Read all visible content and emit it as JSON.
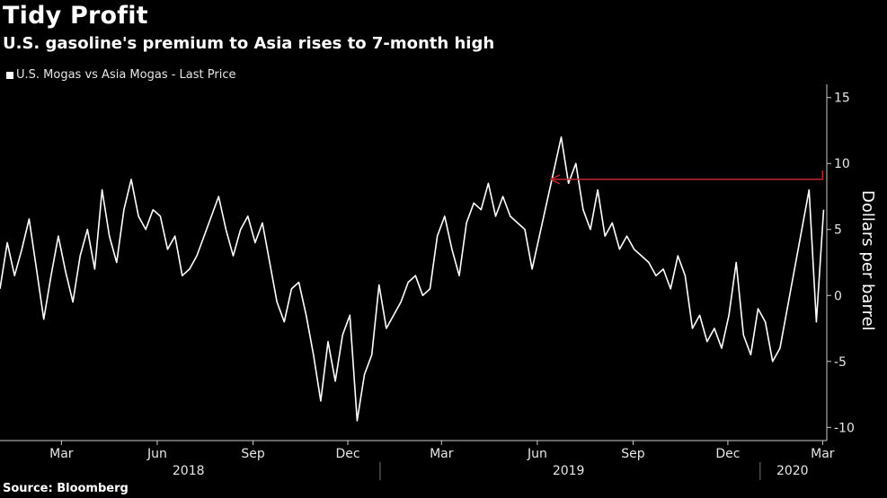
{
  "title": "Tidy Profit",
  "subtitle": "U.S. gasoline's premium to Asia rises to 7-month high",
  "source": "Source: Bloomberg",
  "colors": {
    "background": "#000000",
    "series": "#ffffff",
    "annotation": "#c0272d",
    "axis": "#cccccc"
  },
  "chart_data": {
    "type": "line",
    "title": "Tidy Profit",
    "subtitle": "U.S. gasoline's premium to Asia rises to 7-month high",
    "ylabel": "Dollars per barrel",
    "xlabel": "",
    "ylim": [
      -11,
      16
    ],
    "yticks": [
      15,
      10,
      5,
      0,
      -5,
      -10
    ],
    "ytick_labels": [
      "15",
      "10",
      "5",
      "0",
      "-5",
      "-10"
    ],
    "grid": false,
    "legend": {
      "placement": "top-left",
      "entries": [
        "U.S. Mogas vs Asia Mogas - Last Price"
      ]
    },
    "x_range": [
      "2018-01-01",
      "2020-03-05"
    ],
    "x_tick_labels": [
      {
        "date": "2018-03-01",
        "label": "Mar"
      },
      {
        "date": "2018-06-01",
        "label": "Jun"
      },
      {
        "date": "2018-09-01",
        "label": "Sep"
      },
      {
        "date": "2018-12-01",
        "label": "Dec"
      },
      {
        "date": "2019-03-01",
        "label": "Mar"
      },
      {
        "date": "2019-06-01",
        "label": "Jun"
      },
      {
        "date": "2019-09-01",
        "label": "Sep"
      },
      {
        "date": "2019-12-01",
        "label": "Dec"
      },
      {
        "date": "2020-03-01",
        "label": "Mar"
      }
    ],
    "year_labels": [
      {
        "date": "2018-07-01",
        "label": "2018"
      },
      {
        "date": "2019-07-01",
        "label": "2019"
      },
      {
        "date": "2020-02-01",
        "label": "2020"
      }
    ],
    "year_separators": [
      "2019-01-01",
      "2020-01-01"
    ],
    "annotation": {
      "type": "horizontal-arrow",
      "from_date": "2020-03-01",
      "to_date": "2019-06-14",
      "y": 8.8
    },
    "series": [
      {
        "name": "U.S. Mogas vs Asia Mogas - Last Price",
        "x": [
          "2018-01-01",
          "2018-01-08",
          "2018-01-15",
          "2018-01-22",
          "2018-01-29",
          "2018-02-05",
          "2018-02-12",
          "2018-02-19",
          "2018-02-26",
          "2018-03-05",
          "2018-03-12",
          "2018-03-19",
          "2018-03-26",
          "2018-04-02",
          "2018-04-09",
          "2018-04-16",
          "2018-04-23",
          "2018-04-30",
          "2018-05-07",
          "2018-05-14",
          "2018-05-21",
          "2018-05-28",
          "2018-06-04",
          "2018-06-11",
          "2018-06-18",
          "2018-06-25",
          "2018-07-02",
          "2018-07-09",
          "2018-07-16",
          "2018-07-23",
          "2018-07-30",
          "2018-08-06",
          "2018-08-13",
          "2018-08-20",
          "2018-08-27",
          "2018-09-03",
          "2018-09-10",
          "2018-09-17",
          "2018-09-24",
          "2018-10-01",
          "2018-10-08",
          "2018-10-15",
          "2018-10-22",
          "2018-10-29",
          "2018-11-05",
          "2018-11-12",
          "2018-11-19",
          "2018-11-26",
          "2018-12-03",
          "2018-12-10",
          "2018-12-17",
          "2018-12-24",
          "2018-12-31",
          "2019-01-07",
          "2019-01-14",
          "2019-01-21",
          "2019-01-28",
          "2019-02-04",
          "2019-02-11",
          "2019-02-18",
          "2019-02-25",
          "2019-03-04",
          "2019-03-11",
          "2019-03-18",
          "2019-03-25",
          "2019-04-01",
          "2019-04-08",
          "2019-04-15",
          "2019-04-22",
          "2019-04-29",
          "2019-05-06",
          "2019-05-13",
          "2019-05-20",
          "2019-05-27",
          "2019-06-03",
          "2019-06-10",
          "2019-06-17",
          "2019-06-24",
          "2019-07-01",
          "2019-07-08",
          "2019-07-15",
          "2019-07-22",
          "2019-07-29",
          "2019-08-05",
          "2019-08-12",
          "2019-08-19",
          "2019-08-26",
          "2019-09-02",
          "2019-09-09",
          "2019-09-16",
          "2019-09-23",
          "2019-09-30",
          "2019-10-07",
          "2019-10-14",
          "2019-10-21",
          "2019-10-28",
          "2019-11-04",
          "2019-11-11",
          "2019-11-18",
          "2019-11-25",
          "2019-12-02",
          "2019-12-09",
          "2019-12-16",
          "2019-12-23",
          "2019-12-30",
          "2020-01-06",
          "2020-01-13",
          "2020-01-20",
          "2020-01-27",
          "2020-02-03",
          "2020-02-10",
          "2020-02-17",
          "2020-02-24",
          "2020-03-02"
        ],
        "values": [
          0.5,
          4.0,
          1.5,
          3.5,
          5.8,
          2.0,
          -1.8,
          1.5,
          4.5,
          1.8,
          -0.5,
          3.0,
          5.0,
          2.0,
          8.0,
          4.5,
          2.5,
          6.5,
          8.8,
          6.0,
          5.0,
          6.5,
          6.0,
          3.5,
          4.5,
          1.5,
          2.0,
          3.0,
          4.5,
          6.0,
          7.5,
          5.0,
          3.0,
          5.0,
          6.0,
          4.0,
          5.5,
          2.5,
          -0.5,
          -2.0,
          0.5,
          1.0,
          -1.5,
          -4.5,
          -8.0,
          -3.5,
          -6.5,
          -3.0,
          -1.5,
          -9.5,
          -6.0,
          -4.5,
          0.8,
          -2.5,
          -1.5,
          -0.5,
          1.0,
          1.5,
          0.0,
          0.5,
          4.5,
          6.0,
          3.5,
          1.5,
          5.5,
          7.0,
          6.5,
          8.5,
          6.0,
          7.5,
          6.0,
          5.5,
          5.0,
          2.0,
          4.5,
          7.0,
          9.5,
          12.0,
          8.5,
          10.0,
          6.5,
          5.0,
          8.0,
          4.5,
          5.5,
          3.5,
          4.5,
          3.5,
          3.0,
          2.5,
          1.5,
          2.0,
          0.5,
          3.0,
          1.5,
          -2.5,
          -1.5,
          -3.5,
          -2.5,
          -4.0,
          -1.5,
          2.5,
          -3.0,
          -4.5,
          -1.0,
          -2.0,
          -5.0,
          -4.0,
          -1.0,
          2.0,
          5.0,
          8.0,
          -2.0,
          6.5
        ]
      }
    ]
  }
}
